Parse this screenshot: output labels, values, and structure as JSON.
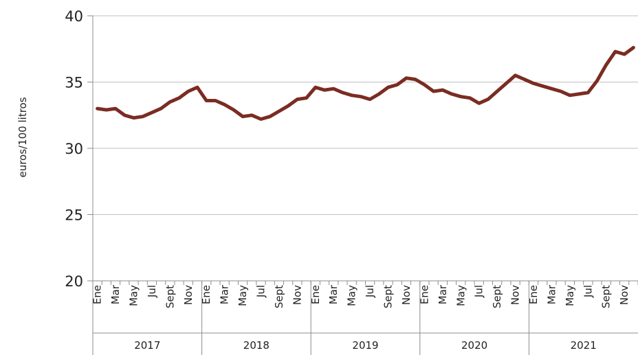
{
  "chart_data": {
    "type": "line",
    "title": "",
    "xlabel": "",
    "ylabel": "euros/100 litros",
    "ylim": [
      20,
      40
    ],
    "yticks": [
      20,
      25,
      30,
      35,
      40
    ],
    "grid": true,
    "legend": "none",
    "colors": {
      "line": "#7b2c22",
      "grid": "#bfbfbf",
      "axis": "#8c8c8c"
    },
    "month_labels": [
      "Ene",
      "Mar",
      "May",
      "Jul",
      "Sept",
      "Nov"
    ],
    "years": [
      "2017",
      "2018",
      "2019",
      "2020",
      "2021"
    ],
    "series": [
      {
        "name": "",
        "values": [
          33.0,
          32.9,
          33.0,
          32.5,
          32.3,
          32.4,
          32.7,
          33.0,
          33.5,
          33.8,
          34.3,
          34.6,
          33.6,
          33.6,
          33.3,
          32.9,
          32.4,
          32.5,
          32.2,
          32.4,
          32.8,
          33.2,
          33.7,
          33.8,
          34.6,
          34.4,
          34.5,
          34.2,
          34.0,
          33.9,
          33.7,
          34.1,
          34.6,
          34.8,
          35.3,
          35.2,
          34.8,
          34.3,
          34.4,
          34.1,
          33.9,
          33.8,
          33.4,
          33.7,
          34.3,
          34.9,
          35.5,
          35.2,
          34.9,
          34.7,
          34.5,
          34.3,
          34.0,
          34.1,
          34.2,
          35.1,
          36.3,
          37.3,
          37.1,
          37.6
        ]
      }
    ]
  }
}
